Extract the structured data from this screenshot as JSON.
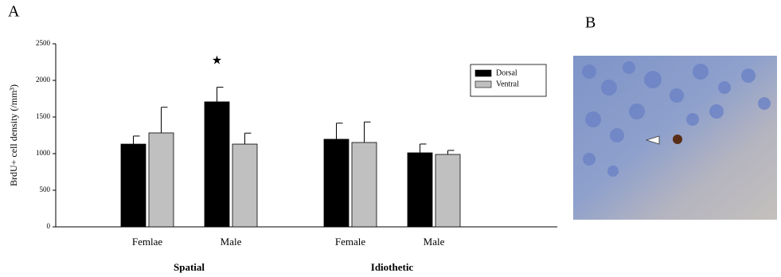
{
  "chart_data": {
    "type": "bar",
    "panel_labels": [
      "A",
      "B"
    ],
    "y_label": "BrdU+ cell density (/mm³)",
    "categories": [
      "Femlae",
      "Male",
      "Female",
      "Male"
    ],
    "group_labels": [
      "Spatial",
      "Idiothetic"
    ],
    "series": [
      {
        "name": "Dorsal",
        "color": "#000000",
        "values": [
          1130,
          1707,
          1196,
          1011
        ],
        "errors": [
          110,
          200,
          220,
          120
        ]
      },
      {
        "name": "Ventral",
        "color": "#c0c0c0",
        "values": [
          1283,
          1130,
          1152,
          989
        ],
        "errors": [
          350,
          150,
          280,
          55
        ]
      }
    ],
    "annotations": [
      "★"
    ],
    "ylim": [
      0,
      2500
    ],
    "yticks": [
      0,
      500,
      1000,
      1500,
      2000,
      2500
    ],
    "legend": "upper right"
  }
}
